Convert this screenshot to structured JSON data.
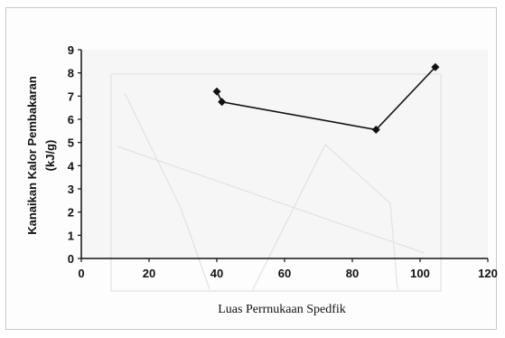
{
  "chart_data": {
    "type": "line",
    "title": "",
    "xlabel": "Luas Perrnukaan Spedfik",
    "ylabel_line1": "Kanaikan Kalor Pembakaran",
    "ylabel_line2": "(kJ/g)",
    "xlim": [
      0,
      120
    ],
    "ylim": [
      0,
      9
    ],
    "x_ticks": [
      "0",
      "20",
      "40",
      "60",
      "80",
      "100",
      "120"
    ],
    "y_ticks": [
      "0",
      "1",
      "2",
      "3",
      "4",
      "5",
      "6",
      "7",
      "8",
      "9"
    ],
    "grid": false,
    "marker": "diamond",
    "series": [
      {
        "x": [
          40,
          41.5,
          87,
          104.5
        ],
        "y": [
          7.2,
          6.75,
          5.55,
          8.25
        ]
      }
    ],
    "colors": {
      "line": "#111111",
      "marker": "#111111",
      "plot_bg": "#f6f6f6"
    }
  }
}
